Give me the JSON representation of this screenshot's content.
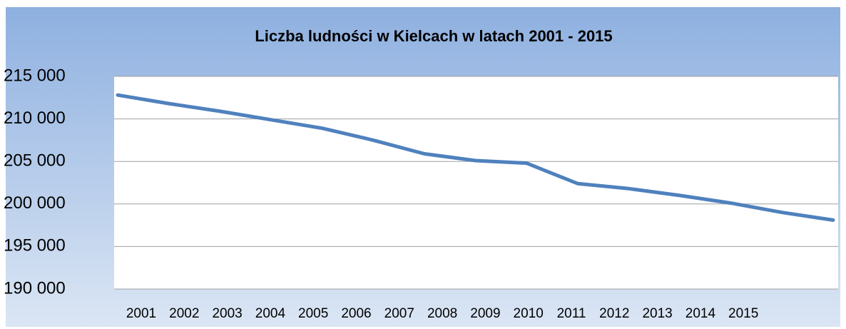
{
  "chart_data": {
    "type": "line",
    "title": "Liczba ludności w Kielcach w latach 2001 - 2015",
    "categories": [
      "2001",
      "2002",
      "2003",
      "2004",
      "2005",
      "2006",
      "2007",
      "2008",
      "2009",
      "2010",
      "2011",
      "2012",
      "2013",
      "2014",
      "2015"
    ],
    "series": [
      {
        "name": "Liczba ludności",
        "color": "#4f81bd",
        "values": [
          212800,
          211800,
          210900,
          209900,
          208900,
          207500,
          205900,
          205100,
          204800,
          202400,
          201800,
          201000,
          200100,
          199000,
          198100
        ]
      }
    ],
    "ylim": [
      190000,
      215000
    ],
    "yticks": [
      {
        "value": 190000,
        "label": "190 000"
      },
      {
        "value": 195000,
        "label": "195 000"
      },
      {
        "value": 200000,
        "label": "200 000"
      },
      {
        "value": 205000,
        "label": "205 000"
      },
      {
        "value": 210000,
        "label": "210 000"
      },
      {
        "value": 215000,
        "label": "215 000"
      }
    ],
    "grid": true
  }
}
